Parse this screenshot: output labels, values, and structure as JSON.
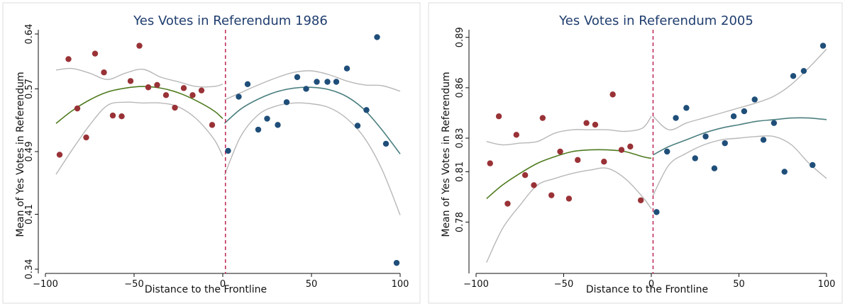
{
  "chart_data": [
    {
      "type": "scatter",
      "title": "Yes Votes in Referendum 1986",
      "xlabel": "Distance to the Frontline",
      "ylabel": "Mean of Yes Votes in Referendum",
      "xlim": [
        -100,
        100
      ],
      "ylim": [
        0.34,
        0.64
      ],
      "xticks": [
        -100,
        -50,
        0,
        50,
        100
      ],
      "xtick_labels": [
        "−100",
        "−50",
        "0",
        "50",
        "100"
      ],
      "yticks": [
        0.34,
        0.41,
        0.49,
        0.57,
        0.64
      ],
      "ytick_labels": [
        "0.34",
        "0.41",
        "0.49",
        "0.57",
        "0.64"
      ],
      "cutoff": 1.5,
      "grid": false,
      "colors": {
        "left_points": "#993236",
        "right_points": "#1f4e79",
        "left_fit": "#4f7b1e",
        "right_fit": "#4c7f7f",
        "ci": "#b8b8b8",
        "cutoff": "#c0305a"
      },
      "series": [
        {
          "role": "left_points",
          "x": [
            -92,
            -87,
            -82,
            -77,
            -72,
            -67,
            -62,
            -57,
            -52,
            -47,
            -42,
            -37,
            -32,
            -27,
            -22,
            -17,
            -12,
            -6
          ],
          "y": [
            0.486,
            0.608,
            0.545,
            0.508,
            0.615,
            0.591,
            0.536,
            0.535,
            0.58,
            0.625,
            0.572,
            0.575,
            0.562,
            0.546,
            0.571,
            0.562,
            0.568,
            0.524
          ]
        },
        {
          "role": "right_points",
          "x": [
            3,
            9,
            14,
            20,
            25,
            31,
            36,
            42,
            47,
            53,
            59,
            64,
            70,
            76,
            81,
            87,
            92,
            98
          ],
          "y": [
            0.491,
            0.56,
            0.576,
            0.518,
            0.532,
            0.524,
            0.553,
            0.585,
            0.57,
            0.579,
            0.579,
            0.579,
            0.596,
            0.523,
            0.543,
            0.636,
            0.5,
            0.348
          ]
        },
        {
          "role": "left_fit",
          "x": [
            -94,
            -85,
            -75,
            -65,
            -55,
            -45,
            -35,
            -25,
            -15,
            -5,
            0
          ],
          "y": [
            0.526,
            0.542,
            0.556,
            0.566,
            0.571,
            0.573,
            0.571,
            0.565,
            0.555,
            0.542,
            0.532
          ]
        },
        {
          "role": "left_ci_upper",
          "x": [
            -94,
            -85,
            -75,
            -65,
            -55,
            -45,
            -35,
            -25,
            -15,
            -5,
            0
          ],
          "y": [
            0.594,
            0.596,
            0.59,
            0.582,
            0.59,
            0.595,
            0.585,
            0.579,
            0.573,
            0.573,
            0.576
          ]
        },
        {
          "role": "left_ci_lower",
          "x": [
            -94,
            -85,
            -75,
            -65,
            -55,
            -45,
            -35,
            -25,
            -15,
            -5,
            0
          ],
          "y": [
            0.461,
            0.492,
            0.524,
            0.549,
            0.553,
            0.552,
            0.552,
            0.547,
            0.532,
            0.506,
            0.484
          ]
        },
        {
          "role": "right_fit",
          "x": [
            1,
            10,
            20,
            30,
            40,
            50,
            60,
            70,
            80,
            90,
            100
          ],
          "y": [
            0.526,
            0.544,
            0.557,
            0.566,
            0.571,
            0.572,
            0.569,
            0.56,
            0.543,
            0.517,
            0.487
          ]
        },
        {
          "role": "right_ci_upper",
          "x": [
            1,
            10,
            20,
            30,
            40,
            50,
            60,
            70,
            80,
            90,
            100
          ],
          "y": [
            0.556,
            0.565,
            0.575,
            0.584,
            0.591,
            0.593,
            0.588,
            0.58,
            0.575,
            0.574,
            0.567
          ]
        },
        {
          "role": "right_ci_lower",
          "x": [
            1,
            10,
            20,
            30,
            40,
            50,
            60,
            70,
            80,
            90,
            100
          ],
          "y": [
            0.46,
            0.509,
            0.537,
            0.548,
            0.552,
            0.551,
            0.546,
            0.532,
            0.507,
            0.466,
            0.409
          ]
        }
      ]
    },
    {
      "type": "scatter",
      "title": "Yes Votes in Referendum 2005",
      "xlabel": "Distance to the Frontline",
      "ylabel": "Mean of Yes Votes in Referendum",
      "xlim": [
        -100,
        100
      ],
      "ylim": [
        0.752,
        0.892
      ],
      "xticks": [
        -100,
        -50,
        0,
        50,
        100
      ],
      "xtick_labels": [
        "−100",
        "−50",
        "0",
        "50",
        "100"
      ],
      "yticks": [
        0.78,
        0.81,
        0.83,
        0.86,
        0.89
      ],
      "ytick_labels": [
        "0.78",
        "0.81",
        "0.83",
        "0.86",
        "0.89"
      ],
      "cutoff": 1,
      "grid": false,
      "colors": {
        "left_points": "#993236",
        "right_points": "#1f4e79",
        "left_fit": "#4f7b1e",
        "right_fit": "#4c7f7f",
        "ci": "#b8b8b8",
        "cutoff": "#c0305a"
      },
      "series": [
        {
          "role": "left_points",
          "x": [
            -92,
            -87,
            -82,
            -77,
            -72,
            -67,
            -62,
            -57,
            -52,
            -47,
            -42,
            -37,
            -32,
            -27,
            -22,
            -17,
            -12,
            -6
          ],
          "y": [
            0.815,
            0.843,
            0.791,
            0.832,
            0.808,
            0.802,
            0.842,
            0.796,
            0.822,
            0.794,
            0.817,
            0.839,
            0.838,
            0.816,
            0.856,
            0.823,
            0.825,
            0.793
          ]
        },
        {
          "role": "right_points",
          "x": [
            3,
            9,
            14,
            20,
            25,
            31,
            36,
            42,
            47,
            53,
            59,
            64,
            70,
            76,
            81,
            87,
            92,
            98
          ],
          "y": [
            0.786,
            0.822,
            0.842,
            0.848,
            0.818,
            0.831,
            0.812,
            0.827,
            0.843,
            0.846,
            0.853,
            0.829,
            0.839,
            0.81,
            0.867,
            0.87,
            0.814,
            0.885
          ]
        },
        {
          "role": "left_fit",
          "x": [
            -94,
            -85,
            -75,
            -65,
            -55,
            -45,
            -35,
            -25,
            -15,
            -5,
            0
          ],
          "y": [
            0.794,
            0.802,
            0.809,
            0.815,
            0.819,
            0.822,
            0.823,
            0.823,
            0.822,
            0.819,
            0.818
          ]
        },
        {
          "role": "left_ci_upper",
          "x": [
            -94,
            -85,
            -75,
            -65,
            -55,
            -45,
            -35,
            -25,
            -15,
            -5,
            0
          ],
          "y": [
            0.828,
            0.826,
            0.827,
            0.828,
            0.833,
            0.835,
            0.835,
            0.835,
            0.834,
            0.836,
            0.843
          ]
        },
        {
          "role": "left_ci_lower",
          "x": [
            -94,
            -85,
            -75,
            -65,
            -55,
            -45,
            -35,
            -25,
            -15,
            -5,
            0
          ],
          "y": [
            0.756,
            0.776,
            0.79,
            0.802,
            0.806,
            0.809,
            0.811,
            0.812,
            0.806,
            0.795,
            0.788
          ]
        },
        {
          "role": "right_fit",
          "x": [
            1,
            10,
            20,
            30,
            40,
            50,
            60,
            70,
            80,
            90,
            100
          ],
          "y": [
            0.82,
            0.825,
            0.829,
            0.833,
            0.836,
            0.838,
            0.84,
            0.841,
            0.842,
            0.842,
            0.841
          ]
        },
        {
          "role": "right_ci_upper",
          "x": [
            1,
            10,
            20,
            30,
            40,
            50,
            60,
            70,
            80,
            90,
            100
          ],
          "y": [
            0.843,
            0.835,
            0.839,
            0.842,
            0.845,
            0.848,
            0.851,
            0.855,
            0.862,
            0.872,
            0.883
          ]
        },
        {
          "role": "right_ci_lower",
          "x": [
            1,
            10,
            20,
            30,
            40,
            50,
            60,
            70,
            80,
            90,
            100
          ],
          "y": [
            0.796,
            0.814,
            0.821,
            0.826,
            0.829,
            0.83,
            0.831,
            0.831,
            0.826,
            0.815,
            0.806
          ]
        }
      ]
    }
  ]
}
